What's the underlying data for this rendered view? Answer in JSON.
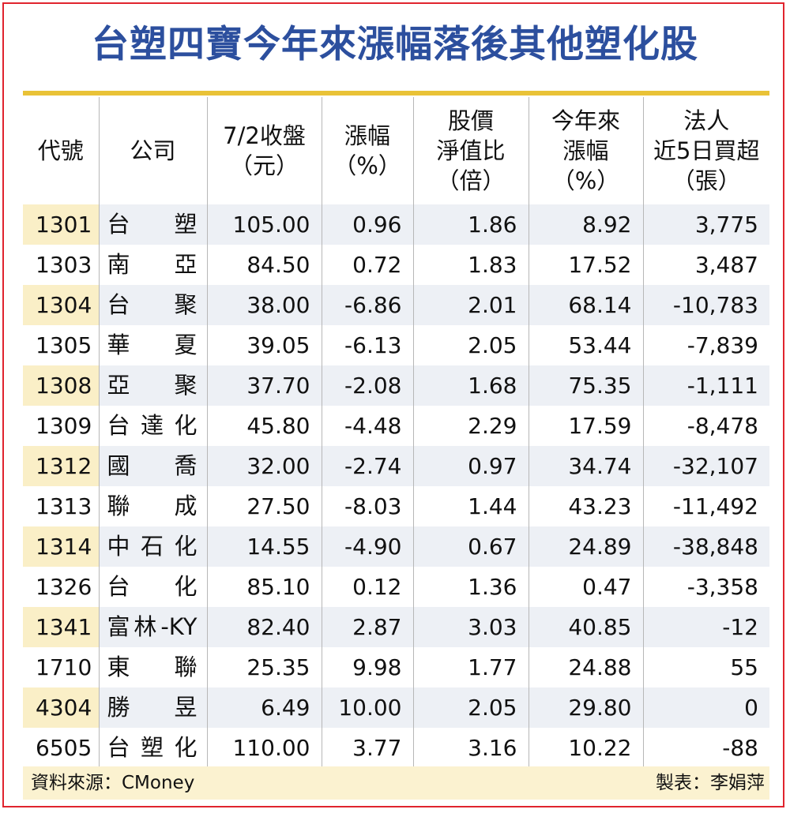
{
  "title": "台塑四寶今年來漲幅落後其他塑化股",
  "colors": {
    "title": "#2c4f9e",
    "rule": "#e9c237",
    "row_shade": "#edf0f5",
    "code_shade": "#faefc7",
    "border": "#e0242e"
  },
  "chart_data": {
    "type": "table",
    "columns": [
      "代號",
      "公司",
      "7/2收盤\n（元）",
      "漲幅\n（%）",
      "股價\n淨值比\n（倍）",
      "今年來\n漲幅\n（%）",
      "法人\n近5日買超\n（張）"
    ],
    "rows": [
      [
        "1301",
        "台塑",
        "105.00",
        "0.96",
        "1.86",
        "8.92",
        "3,775"
      ],
      [
        "1303",
        "南亞",
        "84.50",
        "0.72",
        "1.83",
        "17.52",
        "3,487"
      ],
      [
        "1304",
        "台聚",
        "38.00",
        "-6.86",
        "2.01",
        "68.14",
        "-10,783"
      ],
      [
        "1305",
        "華夏",
        "39.05",
        "-6.13",
        "2.05",
        "53.44",
        "-7,839"
      ],
      [
        "1308",
        "亞聚",
        "37.70",
        "-2.08",
        "1.68",
        "75.35",
        "-1,111"
      ],
      [
        "1309",
        "台達化",
        "45.80",
        "-4.48",
        "2.29",
        "17.59",
        "-8,478"
      ],
      [
        "1312",
        "國喬",
        "32.00",
        "-2.74",
        "0.97",
        "34.74",
        "-32,107"
      ],
      [
        "1313",
        "聯成",
        "27.50",
        "-8.03",
        "1.44",
        "43.23",
        "-11,492"
      ],
      [
        "1314",
        "中石化",
        "14.55",
        "-4.90",
        "0.67",
        "24.89",
        "-38,848"
      ],
      [
        "1326",
        "台化",
        "85.10",
        "0.12",
        "1.36",
        "0.47",
        "-3,358"
      ],
      [
        "1341",
        "富林-KY",
        "82.40",
        "2.87",
        "3.03",
        "40.85",
        "-12"
      ],
      [
        "1710",
        "東聯",
        "25.35",
        "9.98",
        "1.77",
        "24.88",
        "55"
      ],
      [
        "4304",
        "勝昱",
        "6.49",
        "10.00",
        "2.05",
        "29.80",
        "0"
      ],
      [
        "6505",
        "台塑化",
        "110.00",
        "3.77",
        "3.16",
        "10.22",
        "-88"
      ]
    ]
  },
  "footer": {
    "source": "資料來源：CMoney",
    "maker": "製表：李娟萍"
  }
}
